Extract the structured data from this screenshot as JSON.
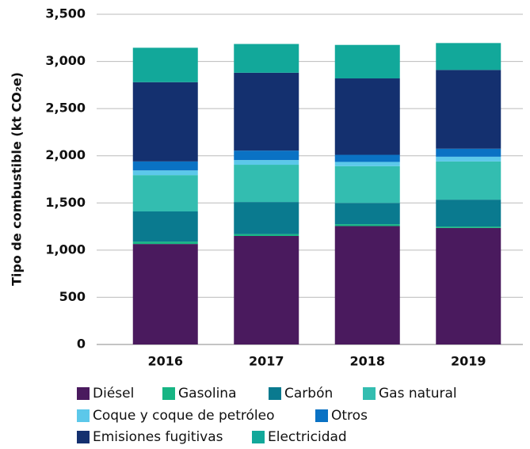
{
  "chart_data": {
    "type": "stacked-bar",
    "y_label": "Tipo de combustible (kt CO₂e)",
    "categories": [
      "2016",
      "2017",
      "2018",
      "2019"
    ],
    "series": [
      {
        "name": "Diésel",
        "color": "#4a1a5e",
        "values": [
          1065,
          1150,
          1255,
          1235
        ]
      },
      {
        "name": "Gasolina",
        "color": "#17b584",
        "values": [
          25,
          20,
          20,
          15
        ]
      },
      {
        "name": "Carbón",
        "color": "#0a7a8f",
        "values": [
          320,
          340,
          225,
          285
        ]
      },
      {
        "name": "Gas natural",
        "color": "#33bdb0",
        "values": [
          385,
          395,
          390,
          405
        ]
      },
      {
        "name": "Coque y coque de petróleo",
        "color": "#5cc8ea",
        "values": [
          50,
          50,
          45,
          50
        ]
      },
      {
        "name": "Otros",
        "color": "#0a72c4",
        "values": [
          95,
          100,
          75,
          85
        ]
      },
      {
        "name": "Emisiones fugitivas",
        "color": "#14306f",
        "values": [
          840,
          825,
          810,
          835
        ]
      },
      {
        "name": "Electricidad",
        "color": "#12a89a",
        "values": [
          365,
          305,
          355,
          285
        ]
      }
    ],
    "ylim": [
      0,
      3500
    ],
    "yticks": [
      0,
      500,
      {
        "value": 1000,
        "label": "1,000"
      },
      {
        "value": 1500,
        "label": "1,500"
      },
      {
        "value": 2000,
        "label": "2,000"
      },
      {
        "value": 2500,
        "label": "2,500"
      },
      {
        "value": 3000,
        "label": "3,000"
      },
      {
        "value": 3500,
        "label": "3,500"
      }
    ],
    "grid": true
  }
}
